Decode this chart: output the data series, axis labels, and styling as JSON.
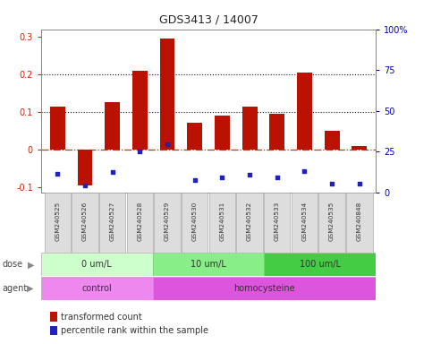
{
  "title": "GDS3413 / 14007",
  "samples": [
    "GSM240525",
    "GSM240526",
    "GSM240527",
    "GSM240528",
    "GSM240529",
    "GSM240530",
    "GSM240531",
    "GSM240532",
    "GSM240533",
    "GSM240534",
    "GSM240535",
    "GSM240848"
  ],
  "transformed_count": [
    0.115,
    -0.095,
    0.125,
    0.21,
    0.295,
    0.07,
    0.09,
    0.115,
    0.095,
    0.205,
    0.05,
    0.01
  ],
  "percentile_rank_y": [
    -0.065,
    -0.095,
    -0.06,
    -0.005,
    0.015,
    -0.082,
    -0.075,
    -0.068,
    -0.075,
    -0.058,
    -0.092,
    -0.092
  ],
  "ylim": [
    -0.115,
    0.32
  ],
  "y2lim": [
    0,
    100
  ],
  "yticks": [
    -0.1,
    0.0,
    0.1,
    0.2,
    0.3
  ],
  "ytick_labels": [
    "-0.1",
    "0",
    "0.1",
    "0.2",
    "0.3"
  ],
  "y2ticks": [
    0,
    25,
    50,
    75,
    100
  ],
  "y2tick_labels": [
    "0",
    "25",
    "50",
    "75",
    "100%"
  ],
  "hlines": [
    0.1,
    0.2
  ],
  "bar_color": "#bb1100",
  "dot_color": "#2222bb",
  "zero_line_color": "#cc3300",
  "hline_color": "#111111",
  "dose_groups": [
    {
      "label": "0 um/L",
      "start": 0,
      "end": 4,
      "color": "#ccffcc"
    },
    {
      "label": "10 um/L",
      "start": 4,
      "end": 8,
      "color": "#88ee88"
    },
    {
      "label": "100 um/L",
      "start": 8,
      "end": 12,
      "color": "#44cc44"
    }
  ],
  "agent_groups": [
    {
      "label": "control",
      "start": 0,
      "end": 4,
      "color": "#ee88ee"
    },
    {
      "label": "homocysteine",
      "start": 4,
      "end": 12,
      "color": "#dd55dd"
    }
  ],
  "legend_red_label": "transformed count",
  "legend_blue_label": "percentile rank within the sample",
  "bar_color_legend": "#bb1100",
  "dot_color_legend": "#2222bb",
  "left_tick_color": "#cc2200",
  "right_tick_color": "#0000bb",
  "title_fontsize": 9,
  "bar_width": 0.55,
  "sample_box_color": "#dddddd",
  "sample_box_edge": "#aaaaaa",
  "arrow_color": "#888888"
}
